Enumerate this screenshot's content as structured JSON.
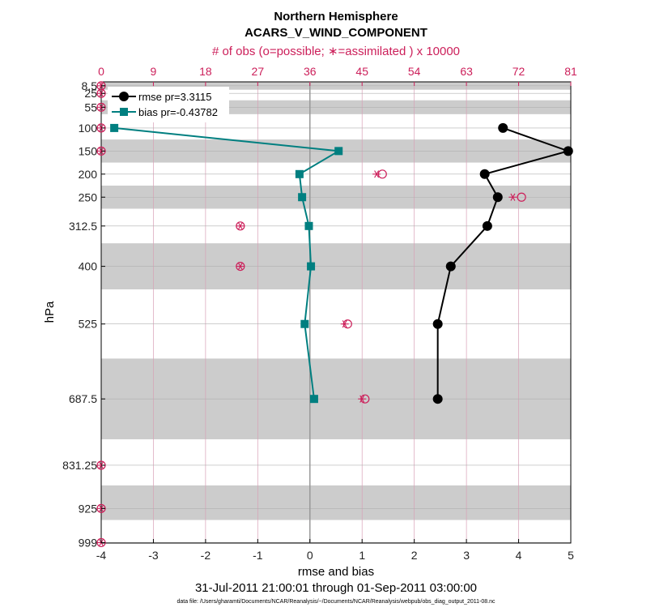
{
  "chart_data": {
    "type": "line",
    "title": "Northern Hemisphere",
    "subtitle": "ACARS_V_WIND_COMPONENT",
    "top_axis_label": "# of obs (o=possible; ∗=assimilated ) x 10000",
    "xlabel": "rmse and bias",
    "ylabel": "hPa",
    "date_range": "31-Jul-2011 21:00:01 through 01-Sep-2011 03:00:00",
    "footnote": "data file: /Users/gharamti/Documents/NCAR/Reanalysis/~/Documents/NCAR/Reanalysis/webpub/obs_diag_output_2011-08.nc",
    "xlim": [
      -4,
      5
    ],
    "x_ticks": [
      "-4",
      "-3",
      "-2",
      "-1",
      "0",
      "1",
      "2",
      "3",
      "4",
      "5"
    ],
    "top_xlim": [
      0,
      81
    ],
    "top_x_ticks": [
      "0",
      "9",
      "18",
      "27",
      "36",
      "45",
      "54",
      "63",
      "72",
      "81"
    ],
    "ylim": [
      1000,
      0
    ],
    "y_levels": [
      8.5,
      25,
      55,
      100,
      150,
      200,
      250,
      312.5,
      400,
      525,
      687.5,
      831.25,
      925,
      999
    ],
    "y_tick_labels": [
      "8.5",
      "25",
      "55",
      "100",
      "150",
      "200",
      "250",
      "312.5",
      "400",
      "525",
      "687.5",
      "831.25",
      "925",
      "999"
    ],
    "layer_bands": [
      [
        0,
        17
      ],
      [
        40,
        70
      ],
      [
        125,
        175
      ],
      [
        225,
        275
      ],
      [
        350,
        450
      ],
      [
        600,
        775
      ],
      [
        875,
        950
      ]
    ],
    "series": [
      {
        "name": "rmse pr=3.3115",
        "color": "#000000",
        "marker": "circle",
        "points": [
          [
            3.7,
            100
          ],
          [
            4.95,
            150
          ],
          [
            3.35,
            200
          ],
          [
            3.6,
            250
          ],
          [
            3.4,
            312.5
          ],
          [
            2.7,
            400
          ],
          [
            2.45,
            525
          ],
          [
            2.45,
            687.5
          ]
        ]
      },
      {
        "name": "bias pr=-0.43782",
        "color": "#007f80",
        "marker": "square",
        "points": [
          [
            -3.75,
            100
          ],
          [
            0.55,
            150
          ],
          [
            -0.2,
            200
          ],
          [
            -0.15,
            250
          ],
          [
            -0.02,
            312.5
          ],
          [
            0.02,
            400
          ],
          [
            -0.1,
            525
          ],
          [
            0.08,
            687.5
          ]
        ]
      }
    ],
    "obs_counts": {
      "color": "#cc1f5a",
      "possible": [
        [
          0,
          8.5
        ],
        [
          0,
          25
        ],
        [
          0,
          55
        ],
        [
          0,
          100
        ],
        [
          0,
          150
        ],
        [
          48.5,
          200
        ],
        [
          72.5,
          250
        ],
        [
          24,
          312.5
        ],
        [
          24,
          400
        ],
        [
          42.5,
          525
        ],
        [
          45.5,
          687.5
        ],
        [
          0,
          831.25
        ],
        [
          0,
          925
        ],
        [
          0,
          999
        ]
      ],
      "assimilated": [
        [
          0,
          8.5
        ],
        [
          0,
          25
        ],
        [
          0,
          55
        ],
        [
          0,
          100
        ],
        [
          0,
          150
        ],
        [
          47.5,
          200
        ],
        [
          71,
          250
        ],
        [
          24,
          312.5
        ],
        [
          24,
          400
        ],
        [
          42,
          525
        ],
        [
          45,
          687.5
        ],
        [
          0,
          831.25
        ],
        [
          0,
          925
        ],
        [
          0,
          999
        ]
      ]
    },
    "grid": true,
    "legend_position": "top-left"
  }
}
